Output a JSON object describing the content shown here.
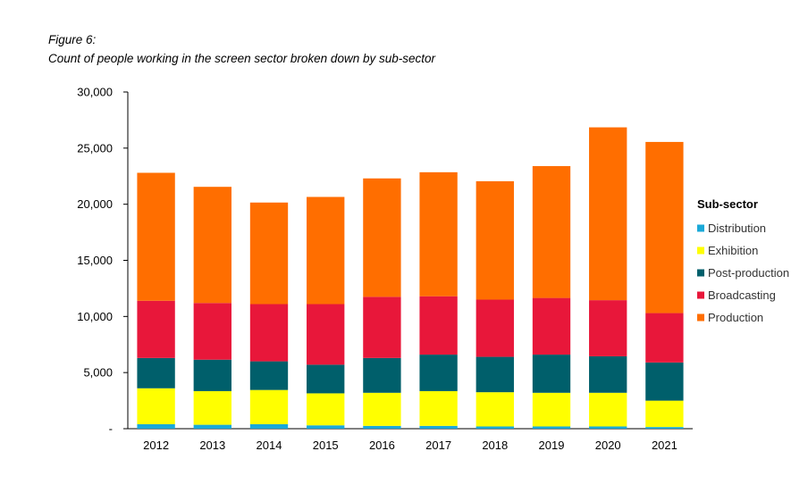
{
  "caption": {
    "figure_label": "Figure 6:",
    "title": "Count of people working in the screen sector broken down by sub-sector"
  },
  "chart_data": {
    "type": "bar",
    "stacked": true,
    "title": "Count of people working in the screen sector broken down by sub-sector",
    "xlabel": "",
    "ylabel": "",
    "ylim": [
      0,
      30000
    ],
    "yticks": [
      0,
      5000,
      10000,
      15000,
      20000,
      25000,
      30000
    ],
    "ytick_labels": [
      "-",
      "5,000",
      "10,000",
      "15,000",
      "20,000",
      "25,000",
      "30,000"
    ],
    "grid": false,
    "legend_title": "Sub-sector",
    "legend_position": "right",
    "categories": [
      "2012",
      "2013",
      "2014",
      "2015",
      "2016",
      "2017",
      "2018",
      "2019",
      "2020",
      "2021"
    ],
    "series": [
      {
        "name": "Distribution",
        "color": "#1BA9D8",
        "values": [
          400,
          350,
          400,
          300,
          250,
          250,
          200,
          200,
          200,
          150
        ]
      },
      {
        "name": "Exhibition",
        "color": "#FFFF00",
        "values": [
          3200,
          3000,
          3050,
          2850,
          2950,
          3100,
          3050,
          3000,
          3000,
          2350
        ]
      },
      {
        "name": "Post-production",
        "color": "#005F6B",
        "values": [
          2700,
          2800,
          2550,
          2550,
          3100,
          3250,
          3150,
          3400,
          3250,
          3400
        ]
      },
      {
        "name": "Broadcasting",
        "color": "#E8173A",
        "values": [
          5100,
          5050,
          5100,
          5400,
          5450,
          5200,
          5100,
          5050,
          5000,
          4400
        ]
      },
      {
        "name": "Production",
        "color": "#FF6E00",
        "values": [
          11400,
          10350,
          9050,
          9550,
          10550,
          11050,
          10550,
          11750,
          15400,
          15250
        ]
      }
    ]
  }
}
